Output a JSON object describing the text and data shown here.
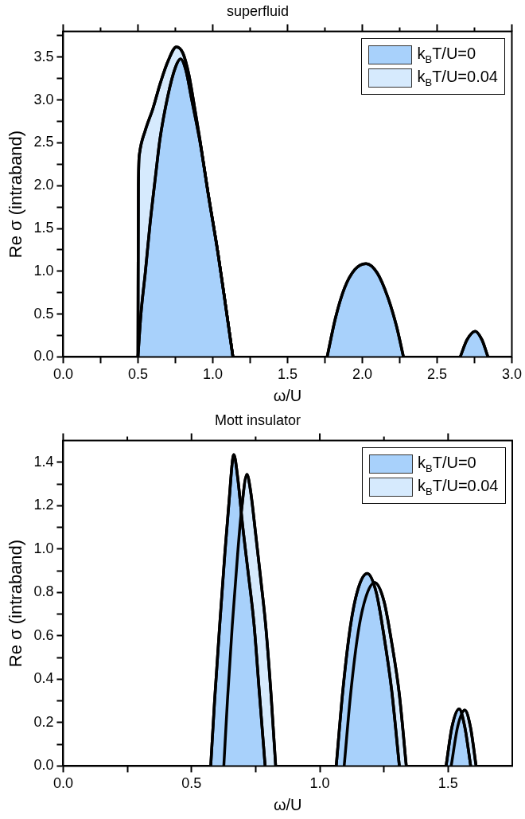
{
  "chart_data": [
    {
      "type": "area",
      "title": "superfluid",
      "xlabel": "ω/U",
      "ylabel": "Re σ (intraband)",
      "legend": "top right",
      "xlim": [
        0,
        3
      ],
      "ylim": [
        0,
        3.8
      ],
      "xticks": [
        {
          "value": 0,
          "label": "0.0"
        },
        {
          "value": 0.25,
          "label": null
        },
        {
          "value": 0.5,
          "label": "0.5"
        },
        {
          "value": 0.75,
          "label": null
        },
        {
          "value": 1,
          "label": "1.0"
        },
        {
          "value": 1.25,
          "label": null
        },
        {
          "value": 1.5,
          "label": "1.5"
        },
        {
          "value": 1.75,
          "label": null
        },
        {
          "value": 2,
          "label": "2.0"
        },
        {
          "value": 2.25,
          "label": null
        },
        {
          "value": 2.5,
          "label": "2.5"
        },
        {
          "value": 2.75,
          "label": null
        },
        {
          "value": 3,
          "label": "3.0"
        }
      ],
      "yticks": [
        {
          "value": 0,
          "label": "0.0"
        },
        {
          "value": 0.25,
          "label": null
        },
        {
          "value": 0.5,
          "label": "0.5"
        },
        {
          "value": 0.75,
          "label": null
        },
        {
          "value": 1,
          "label": "1.0"
        },
        {
          "value": 1.25,
          "label": null
        },
        {
          "value": 1.5,
          "label": "1.5"
        },
        {
          "value": 1.75,
          "label": null
        },
        {
          "value": 2,
          "label": "2.0"
        },
        {
          "value": 2.25,
          "label": null
        },
        {
          "value": 2.5,
          "label": "2.5"
        },
        {
          "value": 2.75,
          "label": null
        },
        {
          "value": 3,
          "label": "3.0"
        },
        {
          "value": 3.25,
          "label": null
        },
        {
          "value": 3.5,
          "label": "3.5"
        },
        {
          "value": 3.75,
          "label": null
        }
      ],
      "series": [
        {
          "name": "k$_{B}$T/U=0",
          "color": "#a8d1fb",
          "x": [
            0.5,
            0.52,
            0.55,
            0.58,
            0.62,
            0.646,
            0.7,
            0.75,
            0.785,
            0.82,
            0.86,
            0.913,
            0.97,
            1.035,
            1.09,
            1.135,
            1.5,
            1.765,
            1.82,
            1.88,
            1.95,
            2.025,
            2.1,
            2.17,
            2.23,
            2.275,
            2.5,
            2.655,
            2.7,
            2.755,
            2.8,
            2.84
          ],
          "values": [
            0,
            0.5,
            1.0,
            1.54,
            2.15,
            2.53,
            3.05,
            3.38,
            3.48,
            3.35,
            3.0,
            2.53,
            1.9,
            1.21,
            0.55,
            0,
            null,
            0,
            0.45,
            0.8,
            1.02,
            1.09,
            0.98,
            0.7,
            0.35,
            0,
            null,
            0,
            0.2,
            0.3,
            0.2,
            0
          ]
        },
        {
          "name": "k$_{B}$T/U=0.04",
          "color": "#d6eafd",
          "x": [
            0.5,
            0.503,
            0.51,
            0.55,
            0.6,
            0.65,
            0.7,
            0.757,
            0.8,
            0.84,
            0.88,
            0.913,
            0.97,
            1.035,
            1.09,
            1.135
          ],
          "values": [
            0,
            2.0,
            2.37,
            2.65,
            2.9,
            3.2,
            3.45,
            3.62,
            3.55,
            3.3,
            2.9,
            2.55,
            1.9,
            1.21,
            0.55,
            0
          ]
        }
      ]
    },
    {
      "type": "area",
      "title": "Mott insulator",
      "xlabel": "ω/U",
      "ylabel": "Re σ (intraband)",
      "legend": "top right",
      "xlim": [
        0,
        1.75
      ],
      "ylim": [
        0,
        1.5
      ],
      "xticks": [
        {
          "value": 0,
          "label": "0.0"
        },
        {
          "value": 0.25,
          "label": null
        },
        {
          "value": 0.5,
          "label": "0.5"
        },
        {
          "value": 0.75,
          "label": null
        },
        {
          "value": 1,
          "label": "1.0"
        },
        {
          "value": 1.25,
          "label": null
        },
        {
          "value": 1.5,
          "label": "1.5"
        }
      ],
      "yticks": [
        {
          "value": 0,
          "label": "0.0"
        },
        {
          "value": 0.1,
          "label": null
        },
        {
          "value": 0.2,
          "label": "0.2"
        },
        {
          "value": 0.3,
          "label": null
        },
        {
          "value": 0.4,
          "label": "0.4"
        },
        {
          "value": 0.5,
          "label": null
        },
        {
          "value": 0.6,
          "label": "0.6"
        },
        {
          "value": 0.7,
          "label": null
        },
        {
          "value": 0.8,
          "label": "0.8"
        },
        {
          "value": 0.9,
          "label": null
        },
        {
          "value": 1,
          "label": "1.0"
        },
        {
          "value": 1.1,
          "label": null
        },
        {
          "value": 1.2,
          "label": "1.2"
        },
        {
          "value": 1.3,
          "label": null
        },
        {
          "value": 1.4,
          "label": "1.4"
        }
      ],
      "series": [
        {
          "name": "k$_{B}$T/U=0",
          "color": "#a8d1fb",
          "x": [
            0.575,
            0.59,
            0.61,
            0.63,
            0.645,
            0.665,
            0.68,
            0.7,
            0.72,
            0.744,
            0.765,
            0.787,
            0.95,
            1.064,
            1.09,
            1.12,
            1.15,
            1.185,
            1.22,
            1.25,
            1.28,
            1.31,
            1.4,
            1.492,
            1.515,
            1.543,
            1.565,
            1.588
          ],
          "values": [
            0,
            0.3,
            0.65,
            0.98,
            1.2,
            1.435,
            1.33,
            1.1,
            0.9,
            0.65,
            0.33,
            0,
            null,
            0,
            0.35,
            0.65,
            0.82,
            0.888,
            0.8,
            0.6,
            0.35,
            0,
            null,
            0,
            0.18,
            0.263,
            0.18,
            0
          ]
        },
        {
          "name": "k$_{B}$T/U=0.04",
          "color": "#d6eafd",
          "x": [
            0.626,
            0.64,
            0.659,
            0.68,
            0.695,
            0.716,
            0.73,
            0.75,
            0.77,
            0.789,
            0.81,
            0.828,
            0.95,
            1.095,
            1.12,
            1.15,
            1.18,
            1.214,
            1.25,
            1.28,
            1.31,
            1.337,
            1.4,
            1.512,
            1.537,
            1.565,
            1.587,
            1.609
          ],
          "values": [
            0,
            0.3,
            0.65,
            0.98,
            1.18,
            1.344,
            1.27,
            1.07,
            0.86,
            0.65,
            0.33,
            0,
            null,
            0,
            0.33,
            0.62,
            0.78,
            0.845,
            0.76,
            0.57,
            0.33,
            0,
            null,
            0,
            0.18,
            0.257,
            0.18,
            0
          ]
        }
      ]
    }
  ]
}
